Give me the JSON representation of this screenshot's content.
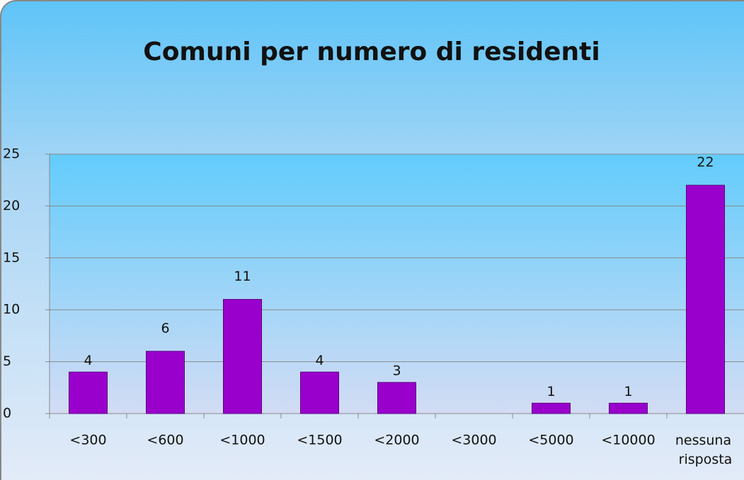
{
  "chart_data": {
    "type": "bar",
    "title": "Comuni per numero di residenti",
    "categories": [
      "<300",
      "<600",
      "<1000",
      "<1500",
      "<2000",
      "<3000",
      "<5000",
      "<10000",
      "nessuna risposta"
    ],
    "values": [
      4,
      6,
      11,
      4,
      3,
      0,
      1,
      1,
      22
    ],
    "value_labels": [
      "4",
      "6",
      "11",
      "4",
      "3",
      null,
      "1",
      "1",
      "22"
    ],
    "color": "#9900cc",
    "ylim": [
      0,
      25
    ],
    "yticks": [
      0,
      5,
      10,
      15,
      20,
      25
    ],
    "grid": true
  }
}
